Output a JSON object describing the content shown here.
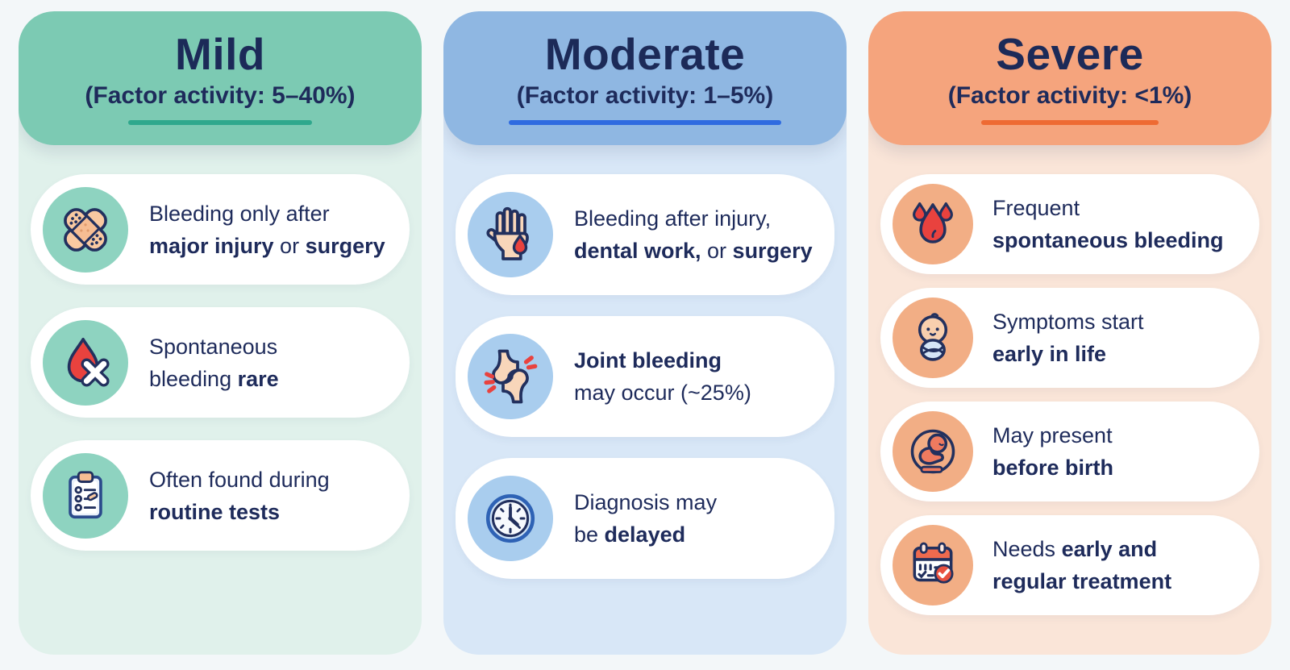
{
  "palette": {
    "page_background": "#f3f7f9",
    "text_navy": "#1e2b5b",
    "card_background": "#ffffff",
    "mild": {
      "header": "#7ccab3",
      "underline": "#2fa88d",
      "panel": "#e0f1eb",
      "icon_circle": "#8ed3c0"
    },
    "moderate": {
      "header": "#8fb7e2",
      "underline": "#2f6be0",
      "panel": "#d8e7f7",
      "icon_circle": "#a9cdee"
    },
    "severe": {
      "header": "#f5a47d",
      "underline": "#ee6a33",
      "panel": "#fae5d8",
      "icon_circle": "#f2ae85"
    }
  },
  "columns": [
    {
      "id": "mild",
      "title": "Mild",
      "subtitle": "(Factor activity: 5–40%)",
      "cards": [
        {
          "icon": "crossed-bandages-icon",
          "lines": [
            [
              {
                "t": "Bleeding only after"
              }
            ],
            [
              {
                "t": "major injury",
                "b": true
              },
              {
                "t": " or "
              },
              {
                "t": "surgery",
                "b": true
              }
            ]
          ]
        },
        {
          "icon": "blood-drop-crossed-icon",
          "lines": [
            [
              {
                "t": "Spontaneous"
              }
            ],
            [
              {
                "t": "bleeding "
              },
              {
                "t": "rare",
                "b": true
              }
            ]
          ]
        },
        {
          "icon": "clipboard-checklist-icon",
          "lines": [
            [
              {
                "t": "Often found during"
              }
            ],
            [
              {
                "t": "routine tests",
                "b": true
              }
            ]
          ]
        }
      ]
    },
    {
      "id": "moderate",
      "title": "Moderate",
      "subtitle": "(Factor activity: 1–5%)",
      "cards": [
        {
          "icon": "bleeding-hand-icon",
          "lines": [
            [
              {
                "t": "Bleeding after injury,"
              }
            ],
            [
              {
                "t": "dental work,",
                "b": true
              },
              {
                "t": " or "
              },
              {
                "t": "surgery",
                "b": true
              }
            ]
          ]
        },
        {
          "icon": "joint-bleeding-icon",
          "lines": [
            [
              {
                "t": "Joint bleeding",
                "b": true
              }
            ],
            [
              {
                "t": "may occur (~25%)"
              }
            ]
          ]
        },
        {
          "icon": "clock-icon",
          "lines": [
            [
              {
                "t": "Diagnosis may"
              }
            ],
            [
              {
                "t": "be "
              },
              {
                "t": "delayed",
                "b": true
              }
            ]
          ]
        }
      ]
    },
    {
      "id": "severe",
      "title": "Severe",
      "subtitle": "(Factor activity: <1%)",
      "cards": [
        {
          "icon": "blood-drops-icon",
          "lines": [
            [
              {
                "t": "Frequent"
              }
            ],
            [
              {
                "t": "spontaneous bleeding",
                "b": true
              }
            ]
          ]
        },
        {
          "icon": "swaddled-baby-icon",
          "lines": [
            [
              {
                "t": "Symptoms start"
              }
            ],
            [
              {
                "t": "early in life",
                "b": true
              }
            ]
          ]
        },
        {
          "icon": "fetus-icon",
          "lines": [
            [
              {
                "t": "May present"
              }
            ],
            [
              {
                "t": "before birth",
                "b": true
              }
            ]
          ]
        },
        {
          "icon": "calendar-check-icon",
          "lines": [
            [
              {
                "t": "Needs "
              },
              {
                "t": "early and",
                "b": true
              }
            ],
            [
              {
                "t": "regular treatment",
                "b": true
              }
            ]
          ]
        }
      ]
    }
  ]
}
